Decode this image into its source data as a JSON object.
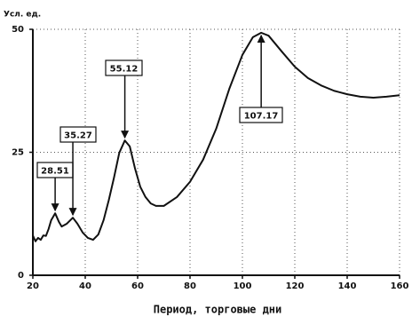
{
  "chart_data": {
    "type": "line",
    "y_label": "Усл. ед.",
    "x_label": "Период, торговые дни",
    "x": [
      20,
      21,
      22,
      23,
      24,
      25,
      26,
      27,
      28.51,
      30,
      31,
      33,
      35.27,
      37,
      39,
      41,
      43,
      45,
      47,
      49,
      51,
      53,
      55.12,
      57,
      59,
      61,
      63,
      65,
      67,
      70,
      75,
      80,
      85,
      90,
      95,
      100,
      104,
      107.17,
      110,
      115,
      120,
      125,
      130,
      135,
      140,
      145,
      150,
      155,
      160
    ],
    "series": [
      {
        "color": "#111111",
        "values": [
          8.1,
          6.9,
          7.6,
          7.2,
          8.1,
          8.0,
          9.4,
          11.2,
          12.6,
          10.8,
          9.9,
          10.5,
          11.7,
          10.5,
          8.7,
          7.6,
          7.2,
          8.3,
          11.2,
          15.3,
          19.9,
          24.9,
          27.4,
          26.2,
          21.7,
          18.0,
          15.9,
          14.6,
          14.1,
          14.1,
          15.9,
          19.0,
          23.5,
          29.8,
          37.9,
          44.8,
          48.4,
          49.3,
          48.7,
          45.5,
          42.4,
          40.1,
          38.6,
          37.5,
          36.8,
          36.3,
          36.1,
          36.3,
          36.6
        ]
      }
    ],
    "peaks": [
      28.51,
      35.27,
      55.12,
      107.17
    ],
    "xlim": [
      20,
      160
    ],
    "xticks": [
      20,
      40,
      60,
      80,
      100,
      120,
      140,
      160
    ],
    "ylim": [
      0,
      50
    ],
    "yticks": [
      0,
      25,
      50
    ],
    "grid": true
  }
}
